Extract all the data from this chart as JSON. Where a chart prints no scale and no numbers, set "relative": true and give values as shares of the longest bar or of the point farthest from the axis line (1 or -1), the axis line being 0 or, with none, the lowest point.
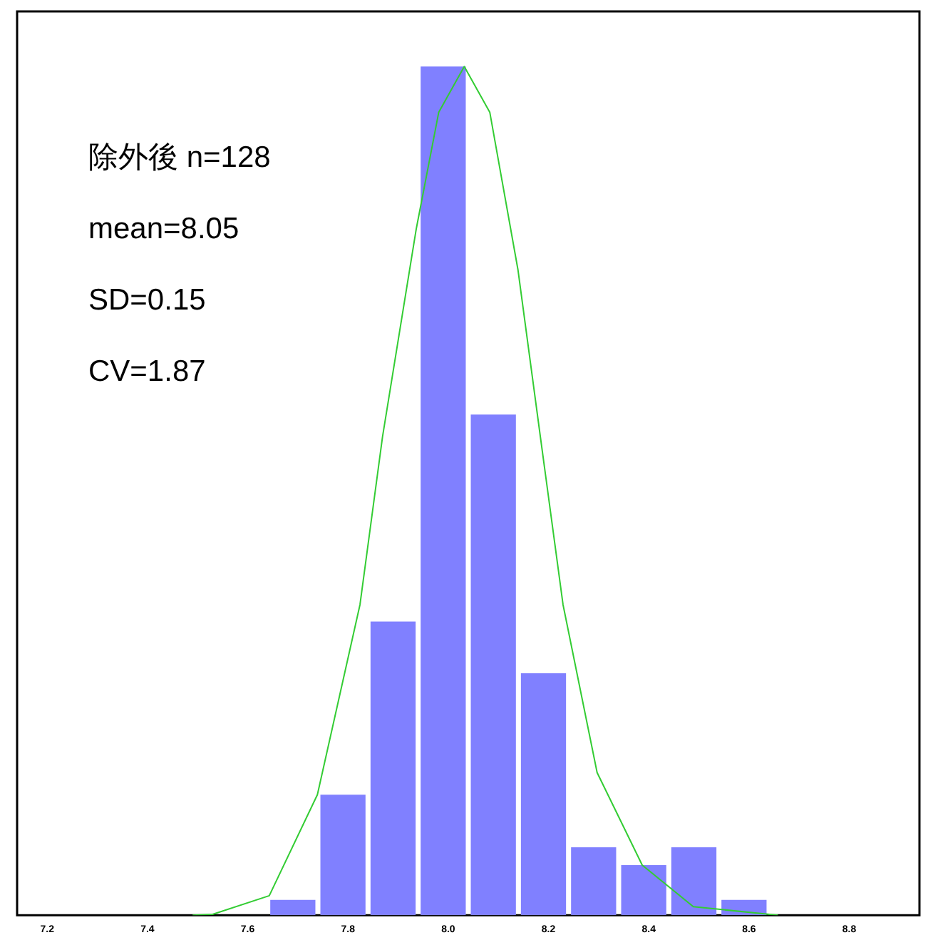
{
  "chart_data": {
    "type": "histogram",
    "relative": true,
    "bins": [
      7.64,
      7.74,
      7.84,
      7.94,
      8.04,
      8.14,
      8.24,
      8.34,
      8.44,
      8.54,
      8.64
    ],
    "series": [
      {
        "color": "#8080ff",
        "values": [
          0.018,
          0.142,
          0.346,
          1,
          0.59,
          0.285,
          0.08,
          0.059,
          0.08,
          0.018
        ]
      },
      {
        "type": "line",
        "color": "#33cc33",
        "x": [
          7.49,
          7.53,
          7.643,
          7.739,
          7.824,
          7.869,
          7.936,
          7.981,
          8.032,
          8.083,
          8.139,
          8.184,
          8.229,
          8.297,
          8.387,
          8.489,
          8.658
        ],
        "values": [
          0,
          0.001,
          0.023,
          0.142,
          0.366,
          0.564,
          0.808,
          0.946,
          1,
          0.946,
          0.761,
          0.563,
          0.366,
          0.168,
          0.059,
          0.01,
          0
        ]
      }
    ],
    "xlim": [
      7.14,
      8.94
    ],
    "xticks": [
      7.2,
      7.4,
      7.6,
      7.8,
      {
        "value": 8,
        "label": "8.0"
      },
      8.2,
      8.4,
      8.6,
      8.8
    ],
    "annotations": [
      "除外後 n=128",
      "mean=8.05",
      "SD=0.15",
      "CV=1.87"
    ],
    "grid": false,
    "legend": false,
    "marker": "none",
    "line_style": "solid"
  }
}
